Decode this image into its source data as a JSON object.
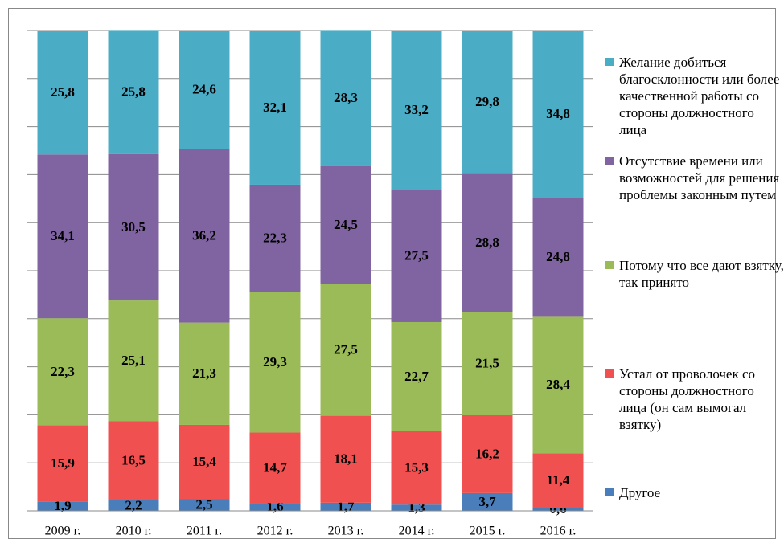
{
  "chart_data": {
    "type": "stacked_bar",
    "categories": [
      "2009 г.",
      "2010 г.",
      "2011 г.",
      "2012 г.",
      "2013 г.",
      "2014 г.",
      "2015 г.",
      "2016 г."
    ],
    "ylim": [
      0,
      100
    ],
    "yticks": [
      0,
      10,
      20,
      30,
      40,
      50,
      60,
      70,
      80,
      90,
      100
    ],
    "grid": true,
    "legend": "right",
    "series": [
      {
        "name": "Другое",
        "color": "#4a7ebb",
        "values": [
          1.9,
          2.2,
          2.5,
          1.6,
          1.7,
          1.3,
          3.7,
          0.6
        ],
        "value_labels": [
          "1,9",
          "2,2",
          "2,5",
          "1,6",
          "1,7",
          "1,3",
          "3,7",
          "0,6"
        ]
      },
      {
        "name": "Устал от проволочек со стороны должностного лица (он сам вымогал взятку)",
        "color": "#f0504f",
        "values": [
          15.9,
          16.5,
          15.4,
          14.7,
          18.1,
          15.3,
          16.2,
          11.4
        ],
        "value_labels": [
          "15,9",
          "16,5",
          "15,4",
          "14,7",
          "18,1",
          "15,3",
          "16,2",
          "11,4"
        ]
      },
      {
        "name": "Потому что все дают взятку, так принято",
        "color": "#9bbb59",
        "values": [
          22.3,
          25.1,
          21.3,
          29.3,
          27.5,
          22.7,
          21.5,
          28.4
        ],
        "value_labels": [
          "22,3",
          "25,1",
          "21,3",
          "29,3",
          "27,5",
          "22,7",
          "21,5",
          "28,4"
        ]
      },
      {
        "name": "Отсутствие времени или возможностей для решения проблемы законным путем",
        "color": "#8064a2",
        "values": [
          34.1,
          30.5,
          36.2,
          22.3,
          24.5,
          27.5,
          28.8,
          24.8
        ],
        "value_labels": [
          "34,1",
          "30,5",
          "36,2",
          "22,3",
          "24,5",
          "27,5",
          "28,8",
          "24,8"
        ]
      },
      {
        "name": "Желание добиться благосклонности или более качественной работы со стороны должностного лица",
        "color": "#4bacc6",
        "values": [
          25.8,
          25.8,
          24.6,
          32.1,
          28.3,
          33.2,
          29.8,
          34.8
        ],
        "value_labels": [
          "25,8",
          "25,8",
          "24,6",
          "32,1",
          "28,3",
          "33,2",
          "29,8",
          "34,8"
        ]
      }
    ]
  }
}
